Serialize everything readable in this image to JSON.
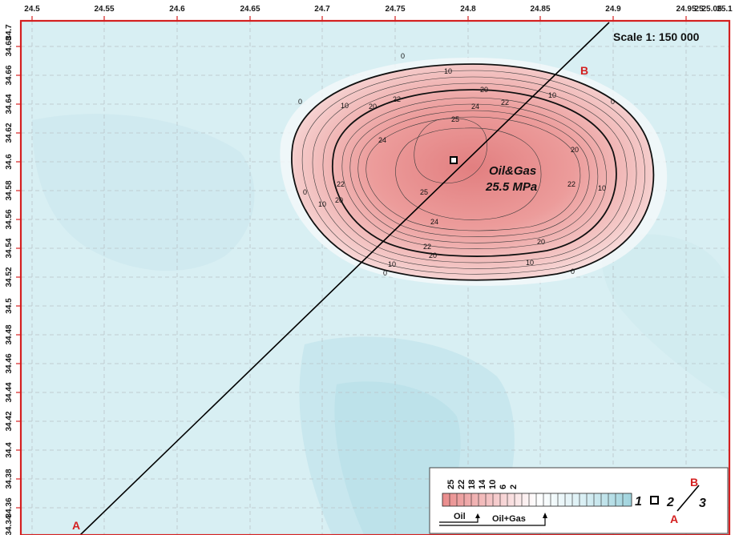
{
  "x_ticks": [
    "24.5",
    "24.55",
    "24.6",
    "24.65",
    "24.7",
    "24.75",
    "24.8",
    "24.85",
    "24.9",
    "24.95",
    "25",
    "25.05",
    "25.1"
  ],
  "y_ticks": [
    "34.7",
    "34.68",
    "34.66",
    "34.64",
    "34.62",
    "34.6",
    "34.58",
    "34.56",
    "34.54",
    "34.52",
    "34.5",
    "34.48",
    "34.46",
    "34.44",
    "34.42",
    "34.4",
    "34.38",
    "34.36",
    "34.34"
  ],
  "scale_text": "Scale 1: 150 000",
  "field_label_line1": "Oil&Gas",
  "field_label_line2": "25.5 MPa",
  "point_a": "A",
  "point_b": "B",
  "contour_labels": {
    "zero": "0",
    "ten": "10",
    "twenty": "20",
    "twentytwo": "22",
    "twentyfour": "24",
    "twentyfive": "25"
  },
  "legend": {
    "values": [
      "25",
      "22",
      "18",
      "14",
      "10",
      "6",
      "2"
    ],
    "item1": "1",
    "item2": "2",
    "item3": "3",
    "b_label": "B",
    "a_label": "A",
    "oil_label": "Oil",
    "oilgas_label": "Oil+Gas"
  },
  "colors": {
    "frame": "#d42020",
    "background": "#d6eef2",
    "field_core": "#e98c8c",
    "cross_section": "#000000"
  }
}
